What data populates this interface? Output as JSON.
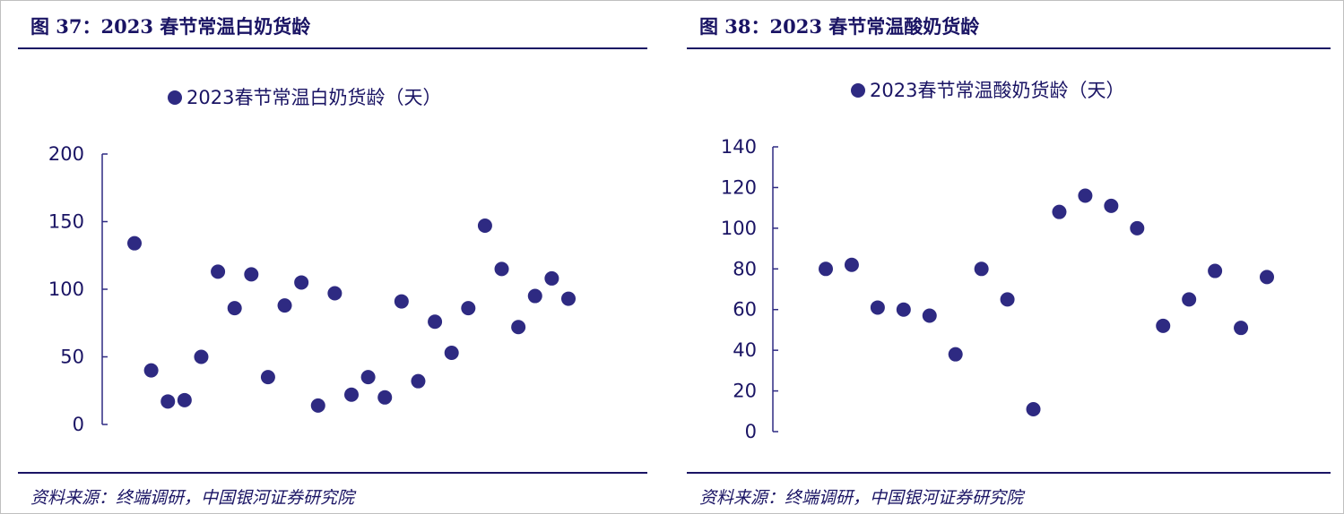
{
  "chart_data": [
    {
      "type": "scatter",
      "figure_title": "图 37：2023 春节常温白奶货龄",
      "legend": "2023春节常温白奶货龄（天）",
      "source": "资料来源：终端调研，中国银河证券研究院",
      "ylim": [
        0,
        200
      ],
      "yticks": [
        "200",
        "150",
        "100",
        "50",
        "0"
      ],
      "grid": false,
      "legend_position": "top-center",
      "series": [
        {
          "name": "2023春节常温白奶货龄（天）",
          "values": [
            134,
            40,
            17,
            18,
            50,
            113,
            86,
            111,
            35,
            88,
            105,
            14,
            97,
            22,
            35,
            20,
            91,
            32,
            76,
            53,
            86,
            147,
            115,
            72,
            95,
            108,
            93
          ]
        }
      ],
      "color": "#2e2a82"
    },
    {
      "type": "scatter",
      "figure_title": "图 38：2023 春节常温酸奶货龄",
      "legend": "2023春节常温酸奶货龄（天）",
      "source": "资料来源：终端调研，中国银河证券研究院",
      "ylim": [
        0,
        140
      ],
      "yticks": [
        "140",
        "120",
        "100",
        "80",
        "60",
        "40",
        "20",
        "0"
      ],
      "grid": false,
      "legend_position": "top-center",
      "series": [
        {
          "name": "2023春节常温酸奶货龄（天）",
          "values": [
            80,
            82,
            61,
            60,
            57,
            38,
            80,
            65,
            11,
            108,
            116,
            111,
            100,
            52,
            65,
            79,
            51,
            76
          ]
        }
      ],
      "color": "#2e2a82"
    }
  ]
}
